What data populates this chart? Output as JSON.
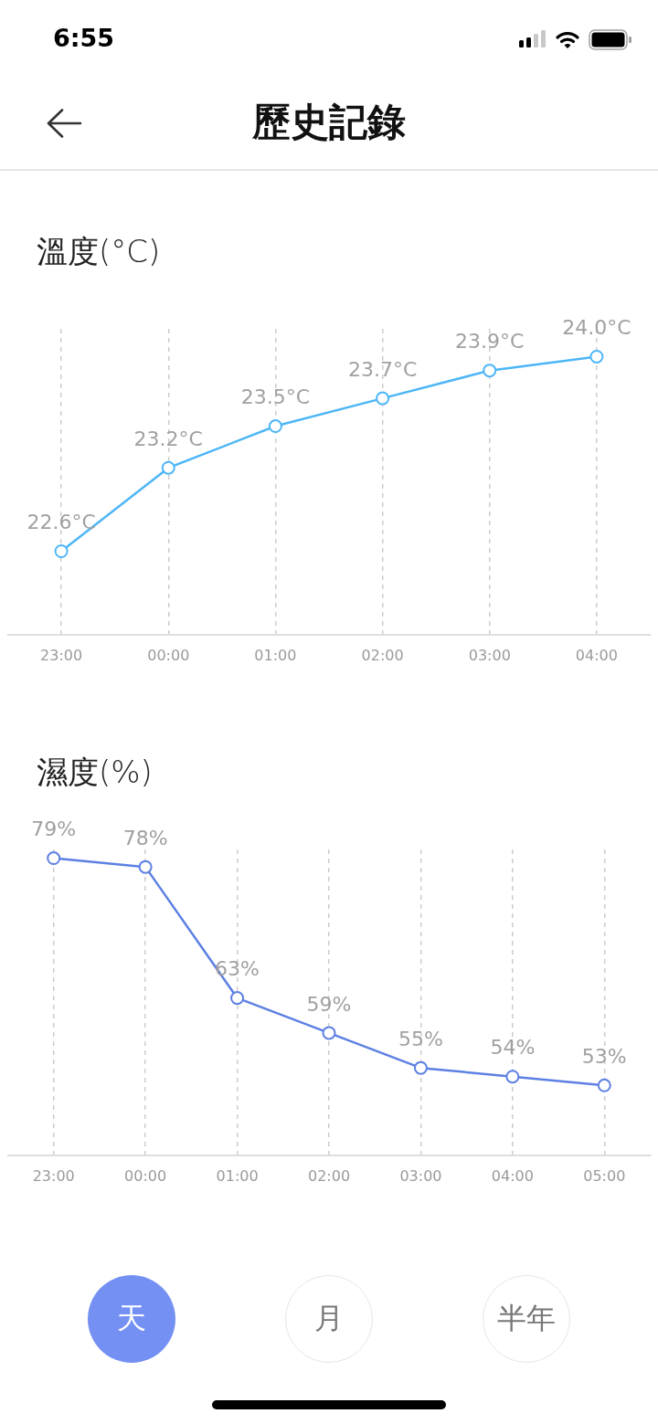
{
  "chart_data": [
    {
      "type": "other",
      "title": "歷史記錄",
      "annotations": [
        "6:55"
      ]
    },
    {
      "type": "line",
      "title": "溫度(°C)",
      "categories": [
        "23:00",
        "00:00",
        "01:00",
        "02:00",
        "03:00",
        "04:00"
      ],
      "values": [
        22.6,
        23.2,
        23.5,
        23.7,
        23.9,
        24.0
      ],
      "value_labels": [
        "22.6°C",
        "23.2°C",
        "23.5°C",
        "23.7°C",
        "23.9°C",
        "24.0°C"
      ],
      "color": "#4db6f7",
      "ylim": [
        22.0,
        24.2
      ],
      "tick_labels": "x",
      "grid": "x",
      "marker": "circle",
      "line_style": "solid"
    },
    {
      "type": "line",
      "title": "濕度(%)",
      "categories": [
        "23:00",
        "00:00",
        "01:00",
        "02:00",
        "03:00",
        "04:00",
        "05:00"
      ],
      "values": [
        79,
        78,
        63,
        59,
        55,
        54,
        53
      ],
      "value_labels": [
        "79%",
        "78%",
        "63%",
        "59%",
        "55%",
        "54%",
        "53%"
      ],
      "color": "#5d80e3",
      "ylim": [
        45,
        80
      ],
      "tick_labels": "x",
      "grid": "x",
      "marker": "circle",
      "line_style": "solid"
    },
    {
      "type": "other",
      "annotations": [
        "天",
        "月",
        "半年"
      ]
    }
  ]
}
